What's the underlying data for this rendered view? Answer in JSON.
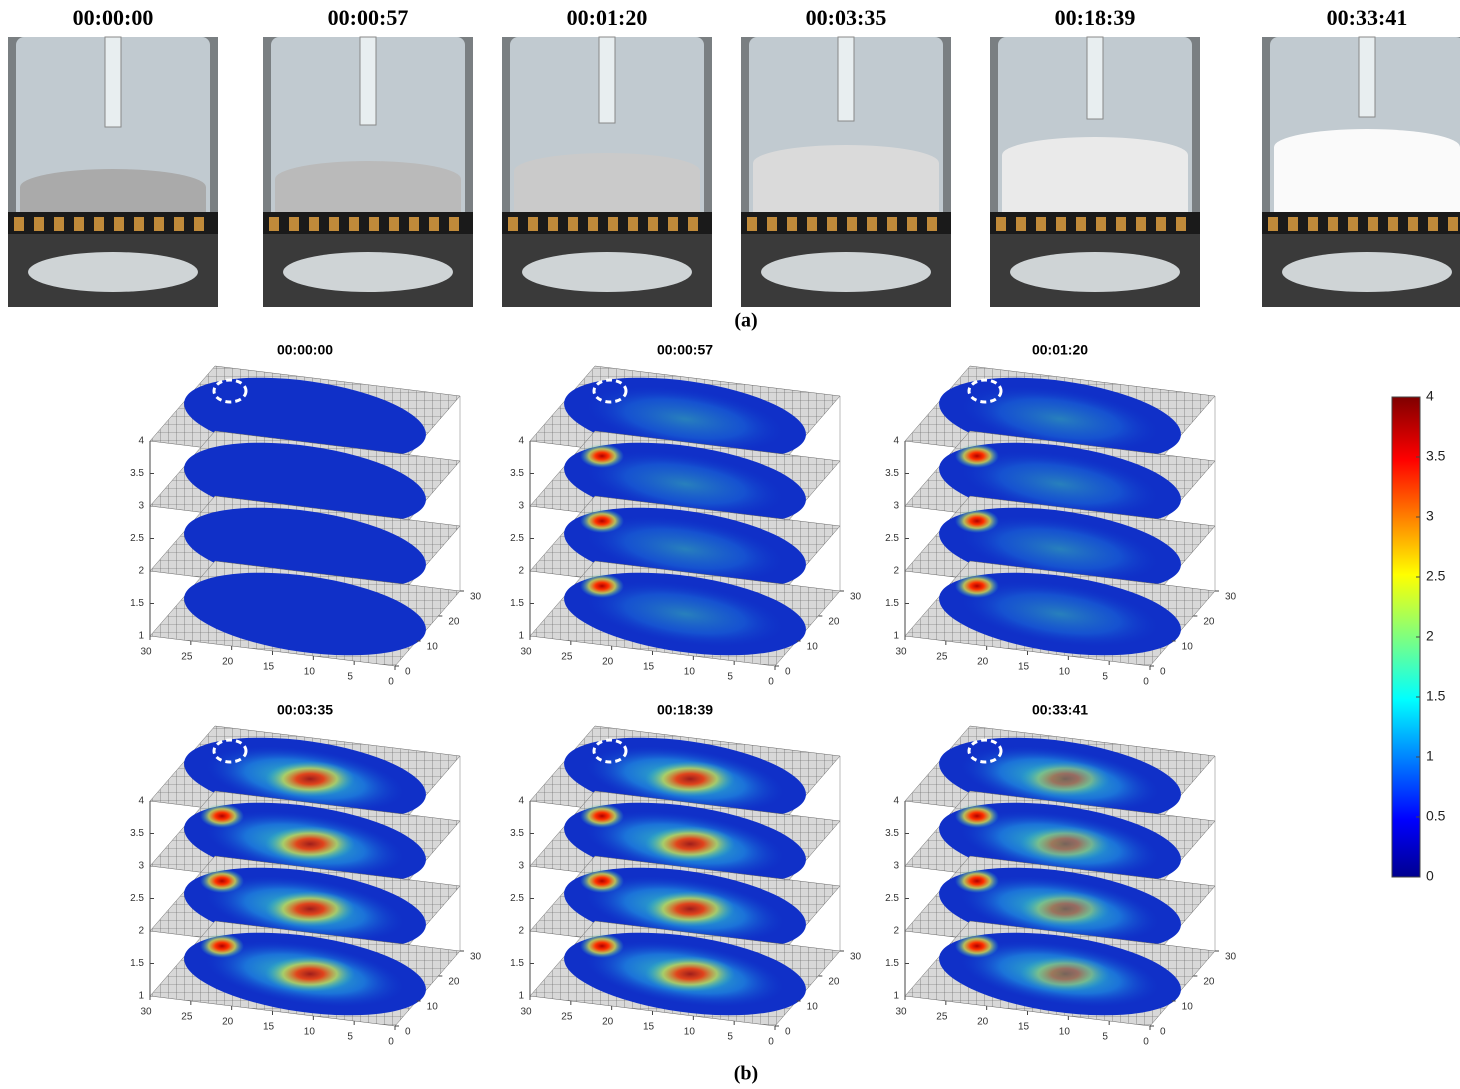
{
  "panel_a": {
    "label": "(a)",
    "photos": [
      {
        "time": "00:00:00"
      },
      {
        "time": "00:00:57"
      },
      {
        "time": "00:01:20"
      },
      {
        "time": "00:03:35"
      },
      {
        "time": "00:18:39"
      },
      {
        "time": "00:33:41"
      }
    ]
  },
  "panel_b": {
    "label": "(b)",
    "plots": [
      {
        "title": "00:00:00"
      },
      {
        "title": "00:00:57"
      },
      {
        "title": "00:01:20"
      },
      {
        "title": "00:03:35"
      },
      {
        "title": "00:18:39"
      },
      {
        "title": "00:33:41"
      }
    ],
    "z_ticks": [
      1,
      1.5,
      2,
      2.5,
      3,
      3.5,
      4
    ],
    "x_ticks": [
      30,
      25,
      20,
      15,
      10,
      5,
      0
    ],
    "y_ticks": [
      0,
      10,
      20,
      30
    ],
    "colorbar_ticks": [
      0,
      0.5,
      1,
      1.5,
      2,
      2.5,
      3,
      3.5,
      4
    ]
  }
}
